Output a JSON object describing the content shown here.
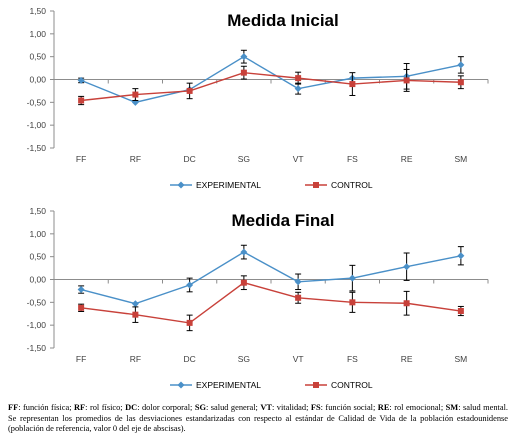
{
  "chart_data": [
    {
      "type": "line",
      "title": "Medida Inicial",
      "categories": [
        "FF",
        "RF",
        "DC",
        "SG",
        "VT",
        "FS",
        "RE",
        "SM"
      ],
      "y_ticks": [
        "1,50",
        "1,00",
        "0,50",
        "0,00",
        "-0,50",
        "-1,00",
        "-1,50"
      ],
      "ylim": [
        -1.5,
        1.5
      ],
      "grid": false,
      "legend_position": "bottom",
      "series": [
        {
          "name": "EXPERIMENTAL",
          "color": "#4a90c8",
          "marker": "diamond",
          "values": [
            -0.02,
            -0.5,
            -0.22,
            0.5,
            -0.2,
            0.03,
            0.07,
            0.32
          ],
          "error": [
            0.05,
            0.0,
            0.0,
            0.14,
            0.12,
            0.0,
            0.28,
            0.18
          ]
        },
        {
          "name": "CONTROL",
          "color": "#c8413a",
          "marker": "square",
          "values": [
            -0.46,
            -0.33,
            -0.25,
            0.15,
            0.03,
            -0.1,
            -0.02,
            -0.06
          ],
          "error": [
            0.09,
            0.13,
            0.17,
            0.14,
            0.13,
            0.25,
            0.24,
            0.14
          ]
        }
      ]
    },
    {
      "type": "line",
      "title": "Medida Final",
      "categories": [
        "FF",
        "RF",
        "DC",
        "SG",
        "VT",
        "FS",
        "RE",
        "SM"
      ],
      "y_ticks": [
        "1,50",
        "1,00",
        "0,50",
        "0,00",
        "-0,50",
        "-1,00",
        "-1,50"
      ],
      "ylim": [
        -1.5,
        1.5
      ],
      "grid": false,
      "legend_position": "bottom",
      "series": [
        {
          "name": "EXPERIMENTAL",
          "color": "#4a90c8",
          "marker": "diamond",
          "values": [
            -0.22,
            -0.53,
            -0.12,
            0.6,
            -0.05,
            0.03,
            0.28,
            0.52
          ],
          "error": [
            0.08,
            0.0,
            0.15,
            0.15,
            0.17,
            0.28,
            0.3,
            0.2
          ]
        },
        {
          "name": "CONTROL",
          "color": "#c8413a",
          "marker": "square",
          "values": [
            -0.62,
            -0.77,
            -0.95,
            -0.07,
            -0.4,
            -0.5,
            -0.52,
            -0.69
          ],
          "error": [
            0.08,
            0.17,
            0.17,
            0.15,
            0.12,
            0.22,
            0.26,
            0.1
          ]
        }
      ]
    }
  ],
  "caption": {
    "parts": [
      {
        "text": "FF",
        "bold": true
      },
      {
        "text": ": función física; ",
        "bold": false
      },
      {
        "text": "RF",
        "bold": true
      },
      {
        "text": ": rol físico; ",
        "bold": false
      },
      {
        "text": "DC",
        "bold": true
      },
      {
        "text": ": dolor corporal; ",
        "bold": false
      },
      {
        "text": "SG",
        "bold": true
      },
      {
        "text": ": salud general; ",
        "bold": false
      },
      {
        "text": "VT",
        "bold": true
      },
      {
        "text": ": vitalidad; ",
        "bold": false
      },
      {
        "text": "FS",
        "bold": true
      },
      {
        "text": ": función social; ",
        "bold": false
      },
      {
        "text": "RE",
        "bold": true
      },
      {
        "text": ": rol emocional; ",
        "bold": false
      },
      {
        "text": "SM",
        "bold": true
      },
      {
        "text": ": salud mental. Se representan los promedios de las desviaciones estandarizadas con respecto al estándar de Calidad de Vida de la población estadounidense (población de referencia, valor 0 del eje de abscisas).",
        "bold": false
      }
    ]
  }
}
